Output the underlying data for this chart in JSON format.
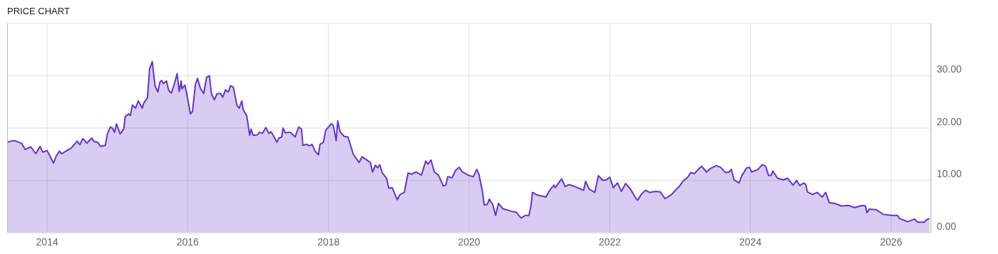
{
  "chart_data": {
    "type": "area",
    "title": "PRICE CHART",
    "grid": true,
    "xlim": [
      "2013-06-09",
      "2026-07-27"
    ],
    "xticks": [
      "2014",
      "2016",
      "2018",
      "2020",
      "2022",
      "2024",
      "2026"
    ],
    "ylim": [
      0,
      40
    ],
    "yticks": [
      {
        "value": 0,
        "label": "0.00"
      },
      {
        "value": 10,
        "label": "10.00"
      },
      {
        "value": 20,
        "label": "20.00"
      },
      {
        "value": 30,
        "label": "30.00"
      }
    ],
    "series": [
      {
        "color": "#6633cc",
        "x": [
          "2013-06-09",
          "2013-06-27",
          "2013-07-15",
          "2013-08-21",
          "2013-09-09",
          "2013-10-08",
          "2013-11-03",
          "2013-11-25",
          "2013-12-09",
          "2014-01-01",
          "2014-02-03",
          "2014-02-18",
          "2014-03-06",
          "2014-03-17",
          "2014-05-07",
          "2014-06-06",
          "2014-06-20",
          "2014-07-05",
          "2014-07-26",
          "2014-08-21",
          "2014-09-02",
          "2014-09-20",
          "2014-10-05",
          "2014-10-30",
          "2014-11-10",
          "2014-11-25",
          "2014-12-06",
          "2014-12-17",
          "2014-12-27",
          "2015-01-15",
          "2015-02-03",
          "2015-02-10",
          "2015-02-28",
          "2015-03-09",
          "2015-03-20",
          "2015-04-05",
          "2015-04-19",
          "2015-05-10",
          "2015-05-18",
          "2015-06-06",
          "2015-06-17",
          "2015-07-01",
          "2015-07-15",
          "2015-07-30",
          "2015-08-10",
          "2015-08-18",
          "2015-08-28",
          "2015-09-13",
          "2015-09-24",
          "2015-10-08",
          "2015-10-23",
          "2015-11-07",
          "2015-11-18",
          "2015-11-28",
          "2015-12-02",
          "2015-12-17",
          "2015-12-27",
          "2016-01-15",
          "2016-01-26",
          "2016-02-10",
          "2016-02-21",
          "2016-03-06",
          "2016-03-24",
          "2016-04-08",
          "2016-04-23",
          "2016-05-03",
          "2016-05-18",
          "2016-06-02",
          "2016-06-20",
          "2016-07-01",
          "2016-07-15",
          "2016-07-30",
          "2016-08-10",
          "2016-08-25",
          "2016-09-13",
          "2016-09-24",
          "2016-10-08",
          "2016-10-15",
          "2016-11-03",
          "2016-11-18",
          "2016-11-25",
          "2016-12-06",
          "2016-12-27",
          "2017-01-08",
          "2017-01-23",
          "2017-02-10",
          "2017-02-25",
          "2017-03-09",
          "2017-03-20",
          "2017-04-08",
          "2017-04-19",
          "2017-05-03",
          "2017-05-10",
          "2017-05-21",
          "2017-06-17",
          "2017-07-12",
          "2017-07-30",
          "2017-08-14",
          "2017-08-21",
          "2017-09-09",
          "2017-09-24",
          "2017-10-08",
          "2017-10-23",
          "2017-11-10",
          "2017-11-18",
          "2017-12-06",
          "2017-12-17",
          "2017-12-27",
          "2018-01-15",
          "2018-01-19",
          "2018-01-26",
          "2018-02-10",
          "2018-02-18",
          "2018-03-02",
          "2018-03-24",
          "2018-04-12",
          "2018-05-10",
          "2018-06-09",
          "2018-06-24",
          "2018-07-15",
          "2018-08-07",
          "2018-08-18",
          "2018-09-02",
          "2018-09-13",
          "2018-09-24",
          "2018-10-08",
          "2018-10-30",
          "2018-11-10",
          "2018-11-28",
          "2018-12-24",
          "2019-01-08",
          "2019-01-30",
          "2019-02-18",
          "2019-03-09",
          "2019-04-01",
          "2019-04-29",
          "2019-05-21",
          "2019-06-02",
          "2019-06-17",
          "2019-07-05",
          "2019-07-26",
          "2019-08-21",
          "2019-09-02",
          "2019-09-13",
          "2019-10-05",
          "2019-10-23",
          "2019-11-10",
          "2019-11-28",
          "2019-12-27",
          "2020-01-23",
          "2020-02-10",
          "2020-02-21",
          "2020-03-09",
          "2020-03-20",
          "2020-04-05",
          "2020-04-15",
          "2020-05-03",
          "2020-05-18",
          "2020-06-02",
          "2020-06-24",
          "2020-08-07",
          "2020-09-02",
          "2020-09-27",
          "2020-10-19",
          "2020-11-07",
          "2020-11-18",
          "2020-11-25",
          "2020-12-20",
          "2021-02-03",
          "2021-02-21",
          "2021-03-17",
          "2021-03-24",
          "2021-04-08",
          "2021-04-26",
          "2021-05-14",
          "2021-06-02",
          "2021-07-05",
          "2021-08-18",
          "2021-08-28",
          "2021-09-17",
          "2021-10-15",
          "2021-11-03",
          "2021-11-25",
          "2021-12-13",
          "2022-01-01",
          "2022-01-19",
          "2022-02-10",
          "2022-03-02",
          "2022-03-24",
          "2022-04-19",
          "2022-05-14",
          "2022-05-25",
          "2022-06-13",
          "2022-07-05",
          "2022-07-26",
          "2022-08-28",
          "2022-09-20",
          "2022-10-15",
          "2022-11-18",
          "2022-12-09",
          "2022-12-27",
          "2023-01-15",
          "2023-02-10",
          "2023-02-25",
          "2023-03-17",
          "2023-04-05",
          "2023-04-23",
          "2023-05-18",
          "2023-06-09",
          "2023-07-08",
          "2023-07-30",
          "2023-08-25",
          "2023-09-13",
          "2023-09-24",
          "2023-10-08",
          "2023-11-03",
          "2023-11-18",
          "2023-12-13",
          "2023-12-27",
          "2024-01-08",
          "2024-02-10",
          "2024-03-02",
          "2024-03-20",
          "2024-04-05",
          "2024-04-19",
          "2024-04-26",
          "2024-05-21",
          "2024-06-20",
          "2024-07-12",
          "2024-08-10",
          "2024-08-28",
          "2024-09-13",
          "2024-10-05",
          "2024-10-15",
          "2024-10-23",
          "2024-11-18",
          "2024-12-13",
          "2025-01-08",
          "2025-01-26",
          "2025-02-14",
          "2025-03-13",
          "2025-04-19",
          "2025-05-25",
          "2025-06-24",
          "2025-08-03",
          "2025-08-21",
          "2025-08-28",
          "2025-09-09",
          "2025-10-15",
          "2025-11-21",
          "2026-01-04",
          "2026-02-03",
          "2026-02-14",
          "2026-03-27",
          "2026-05-03",
          "2026-05-18",
          "2026-06-24",
          "2026-07-01",
          "2026-07-19"
        ],
        "values": [
          17.3,
          17.5,
          17.6,
          17.1,
          15.9,
          16.4,
          15.1,
          16.5,
          15.4,
          15.7,
          13.3,
          14.7,
          15.6,
          15.1,
          16.2,
          17.5,
          16.8,
          18.0,
          17.1,
          18.1,
          17.4,
          17.3,
          16.5,
          16.7,
          18.9,
          20.2,
          20.0,
          19.2,
          20.8,
          18.9,
          19.8,
          22.2,
          22.7,
          22.4,
          24.4,
          23.8,
          25.2,
          23.8,
          24.8,
          25.8,
          31.3,
          32.7,
          28.1,
          26.9,
          28.8,
          29.1,
          28.5,
          29.0,
          27.2,
          26.7,
          28.4,
          30.4,
          27.0,
          29.0,
          27.5,
          28.2,
          26.6,
          22.7,
          23.2,
          28.4,
          29.5,
          27.7,
          26.6,
          29.7,
          30.0,
          26.6,
          25.4,
          26.6,
          26.6,
          25.9,
          27.3,
          26.9,
          28.1,
          27.8,
          24.3,
          23.8,
          25.2,
          23.5,
          22.3,
          18.6,
          19.8,
          18.6,
          18.7,
          19.2,
          19.0,
          20.1,
          19.0,
          19.3,
          18.6,
          17.3,
          18.1,
          18.3,
          20.0,
          19.1,
          19.2,
          18.3,
          20.2,
          19.8,
          16.7,
          16.9,
          16.6,
          16.9,
          15.6,
          14.9,
          16.9,
          17.3,
          19.5,
          20.0,
          20.8,
          20.8,
          20.5,
          17.6,
          21.4,
          19.3,
          18.4,
          18.3,
          15.0,
          13.4,
          14.5,
          14.0,
          13.4,
          11.6,
          12.9,
          12.4,
          13.0,
          11.4,
          10.4,
          8.5,
          8.6,
          6.3,
          7.3,
          7.7,
          11.4,
          11.2,
          11.6,
          11.0,
          13.7,
          13.1,
          13.9,
          11.6,
          11.0,
          8.9,
          9.1,
          10.7,
          10.5,
          11.9,
          12.5,
          11.6,
          11.0,
          10.7,
          12.1,
          11.2,
          8.2,
          5.3,
          5.4,
          6.4,
          5.4,
          3.3,
          5.6,
          4.6,
          4.1,
          3.9,
          2.8,
          3.3,
          3.3,
          5.2,
          7.7,
          7.2,
          6.8,
          8.0,
          9.1,
          8.6,
          9.4,
          10.3,
          8.8,
          9.2,
          8.8,
          8.1,
          9.8,
          8.3,
          7.7,
          10.9,
          10.0,
          10.1,
          10.6,
          8.6,
          9.5,
          7.9,
          9.4,
          8.3,
          6.7,
          6.2,
          7.3,
          8.1,
          7.7,
          7.9,
          7.8,
          6.5,
          7.3,
          8.2,
          8.8,
          9.8,
          10.6,
          11.5,
          11.3,
          12.1,
          12.7,
          11.6,
          12.3,
          12.8,
          12.5,
          11.5,
          11.6,
          12.1,
          10.1,
          9.5,
          10.9,
          12.4,
          12.5,
          11.6,
          12.1,
          13.0,
          12.7,
          10.9,
          11.0,
          11.8,
          10.4,
          10.1,
          10.4,
          9.1,
          10.0,
          9.0,
          9.5,
          9.2,
          7.8,
          7.3,
          7.7,
          6.8,
          7.7,
          5.7,
          5.6,
          5.1,
          5.2,
          4.8,
          5.2,
          5.1,
          3.8,
          4.5,
          4.4,
          3.5,
          3.3,
          3.3,
          2.7,
          2.1,
          2.6,
          2.0,
          2.0,
          2.4,
          2.7
        ]
      }
    ]
  }
}
